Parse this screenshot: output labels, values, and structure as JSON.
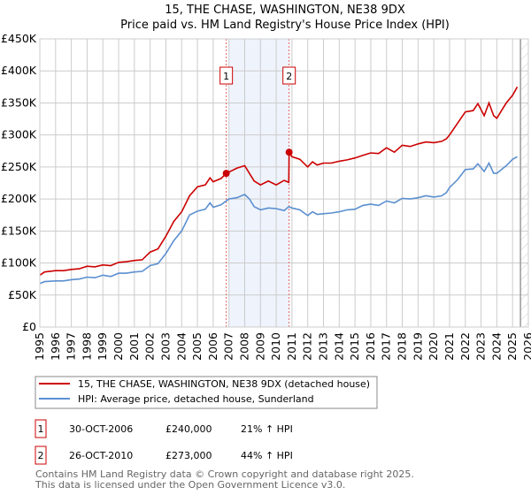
{
  "title": "15, THE CHASE, WASHINGTON, NE38 9DX",
  "subtitle": "Price paid vs. HM Land Registry's House Price Index (HPI)",
  "colors": {
    "property": "#cc0000",
    "hpi": "#5b8fd0",
    "band": "#eef3fc"
  },
  "chart_data": {
    "type": "line",
    "title": "15, THE CHASE, WASHINGTON, NE38 9DX",
    "xlim": [
      1995,
      2026
    ],
    "ylim": [
      0,
      450000
    ],
    "x_ticks": [
      "1995",
      "1996",
      "1997",
      "1998",
      "1999",
      "2000",
      "2001",
      "2002",
      "2003",
      "2004",
      "2005",
      "2006",
      "2007",
      "2008",
      "2009",
      "2010",
      "2011",
      "2012",
      "2013",
      "2014",
      "2015",
      "2016",
      "2017",
      "2018",
      "2019",
      "2020",
      "2021",
      "2022",
      "2023",
      "2024",
      "2025",
      "2026"
    ],
    "y_ticks": [
      {
        "value": 0,
        "label": "£0"
      },
      {
        "value": 50000,
        "label": "£50K"
      },
      {
        "value": 100000,
        "label": "£100K"
      },
      {
        "value": 150000,
        "label": "£150K"
      },
      {
        "value": 200000,
        "label": "£200K"
      },
      {
        "value": 250000,
        "label": "£250K"
      },
      {
        "value": 300000,
        "label": "£300K"
      },
      {
        "value": 350000,
        "label": "£350K"
      },
      {
        "value": 400000,
        "label": "£400K"
      },
      {
        "value": 450000,
        "label": "£450K"
      }
    ],
    "grid": true,
    "shaded_period": [
      2007.0,
      2010.82
    ],
    "forecast_hatch_from": 2025.5,
    "series": [
      {
        "name": "15, THE CHASE, WASHINGTON, NE38 9DX (detached house)",
        "color": "#cc0000",
        "x": [
          1995,
          1995.3,
          1996,
          1996.5,
          1997,
          1997.5,
          1998,
          1998.5,
          1999,
          1999.5,
          2000,
          2000.5,
          2001,
          2001.5,
          2002,
          2002.5,
          2003,
          2003.5,
          2004,
          2004.5,
          2005,
          2005.5,
          2005.8,
          2006,
          2006.5,
          2006.83,
          2007,
          2007.5,
          2008,
          2008.3,
          2008.6,
          2009,
          2009.5,
          2010,
          2010.5,
          2010.8,
          2010.82,
          2011,
          2011.5,
          2012,
          2012.3,
          2012.6,
          2013,
          2013.5,
          2014,
          2014.5,
          2015,
          2015.5,
          2016,
          2016.5,
          2017,
          2017.5,
          2018,
          2018.5,
          2019,
          2019.5,
          2020,
          2020.5,
          2020.8,
          2021,
          2021.5,
          2022,
          2022.5,
          2022.8,
          2023.2,
          2023.5,
          2023.8,
          2024,
          2024.3,
          2024.6,
          2025,
          2025.3
        ],
        "y": [
          81000,
          86000,
          88000,
          88000,
          90000,
          91000,
          95000,
          94000,
          97000,
          96000,
          101000,
          102000,
          104000,
          105000,
          117000,
          122000,
          142000,
          165000,
          180000,
          205000,
          219000,
          222000,
          233000,
          227000,
          232000,
          240000,
          242000,
          248000,
          252000,
          240000,
          228000,
          222000,
          228000,
          222000,
          229000,
          226000,
          273000,
          266000,
          262000,
          250000,
          258000,
          253000,
          256000,
          256000,
          259000,
          261000,
          264000,
          268000,
          272000,
          271000,
          280000,
          273000,
          284000,
          282000,
          286000,
          289000,
          288000,
          290000,
          294000,
          300000,
          318000,
          336000,
          338000,
          349000,
          330000,
          350000,
          330000,
          326000,
          338000,
          350000,
          362000,
          375000
        ]
      },
      {
        "name": "HPI: Average price, detached house, Sunderland",
        "color": "#5b8fd0",
        "x": [
          1995,
          1995.3,
          1996,
          1996.5,
          1997,
          1997.5,
          1998,
          1998.5,
          1999,
          1999.5,
          2000,
          2000.5,
          2001,
          2001.5,
          2002,
          2002.5,
          2003,
          2003.5,
          2004,
          2004.5,
          2005,
          2005.5,
          2005.8,
          2006,
          2006.5,
          2007,
          2007.5,
          2008,
          2008.3,
          2008.6,
          2009,
          2009.5,
          2010,
          2010.5,
          2010.8,
          2011,
          2011.5,
          2012,
          2012.3,
          2012.6,
          2013,
          2013.5,
          2014,
          2014.5,
          2015,
          2015.5,
          2016,
          2016.5,
          2017,
          2017.5,
          2018,
          2018.5,
          2019,
          2019.5,
          2020,
          2020.5,
          2020.8,
          2021,
          2021.5,
          2022,
          2022.5,
          2022.8,
          2023.2,
          2023.5,
          2023.8,
          2024,
          2024.3,
          2024.6,
          2025,
          2025.3
        ],
        "y": [
          68000,
          71000,
          72000,
          72000,
          74000,
          75000,
          78000,
          77000,
          81000,
          79000,
          84000,
          84000,
          86000,
          87000,
          96000,
          99000,
          115000,
          135000,
          150000,
          175000,
          181000,
          184000,
          194000,
          187000,
          191000,
          200000,
          202000,
          207000,
          200000,
          188000,
          183000,
          186000,
          185000,
          182000,
          188000,
          186000,
          183000,
          174000,
          180000,
          176000,
          177000,
          178000,
          180000,
          183000,
          184000,
          190000,
          192000,
          190000,
          197000,
          194000,
          201000,
          200000,
          202000,
          205000,
          203000,
          205000,
          210000,
          218000,
          230000,
          246000,
          247000,
          255000,
          243000,
          256000,
          240000,
          240000,
          246000,
          252000,
          262000,
          266000
        ]
      }
    ],
    "annotations": [
      {
        "label": "1",
        "x": 2006.83,
        "y": 240000
      },
      {
        "label": "2",
        "x": 2010.82,
        "y": 273000
      }
    ]
  },
  "legend": [
    {
      "label": "15, THE CHASE, WASHINGTON, NE38 9DX (detached house)"
    },
    {
      "label": "HPI: Average price, detached house, Sunderland"
    }
  ],
  "sales": [
    {
      "num": "1",
      "date": "30-OCT-2006",
      "price": "£240,000",
      "hpi": "21% ↑ HPI"
    },
    {
      "num": "2",
      "date": "26-OCT-2010",
      "price": "£273,000",
      "hpi": "44% ↑ HPI"
    }
  ],
  "footer": [
    "Contains HM Land Registry data © Crown copyright and database right 2025.",
    "This data is licensed under the Open Government Licence v3.0."
  ]
}
